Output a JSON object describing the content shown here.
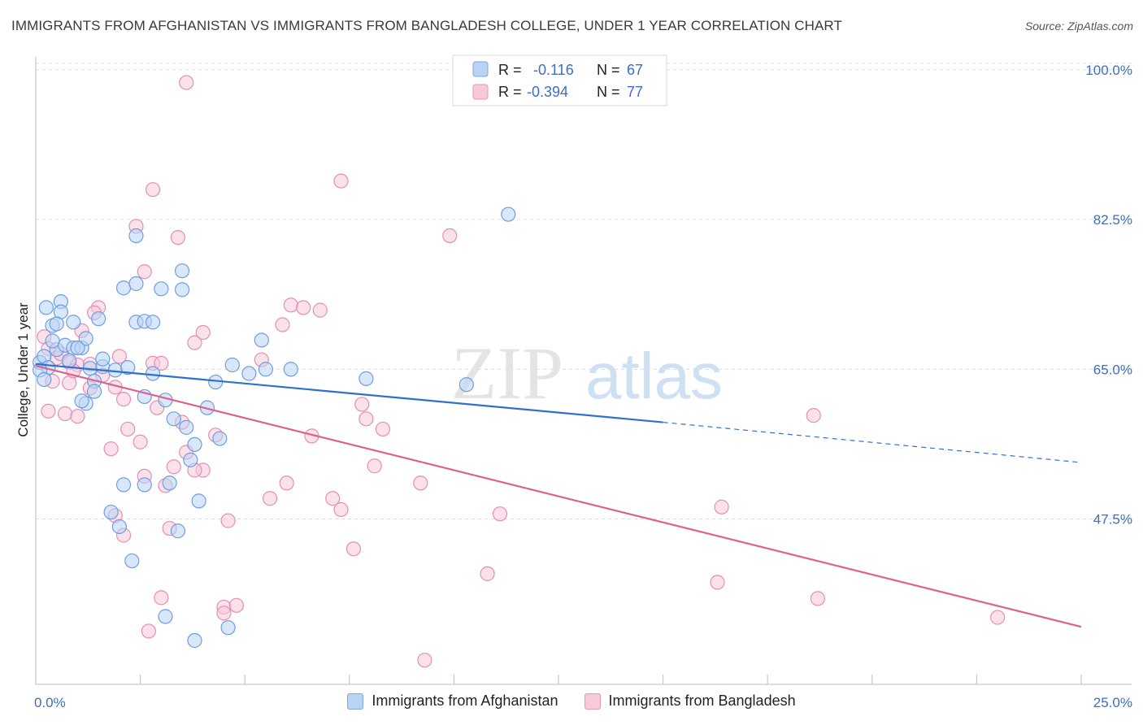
{
  "title": "IMMIGRANTS FROM AFGHANISTAN VS IMMIGRANTS FROM BANGLADESH COLLEGE, UNDER 1 YEAR CORRELATION CHART",
  "source": "Source: ZipAtlas.com",
  "watermark": {
    "zip": "ZIP",
    "atlas": "atlas"
  },
  "colors": {
    "blue_fill": "#b9d3f5",
    "blue_stroke": "#6f9ee0",
    "blue_line": "#2f6fd0",
    "pink_fill": "#f8c9d9",
    "pink_stroke": "#e58fb0",
    "pink_line": "#e0608c",
    "tick_text": "#3b6fc4"
  },
  "legend": {
    "rows": [
      {
        "r_label": "R =",
        "r_value": "-0.116",
        "n_label": "N =",
        "n_value": "67"
      },
      {
        "r_label": "R =",
        "r_value": "-0.394",
        "n_label": "N =",
        "n_value": "77"
      }
    ],
    "placement": "top-center"
  },
  "bottom_legend": [
    "Immigrants from Afghanistan",
    "Immigrants from Bangladesh"
  ],
  "chart_data": {
    "type": "scatter",
    "xlabel": "",
    "ylabel": "College, Under 1 year",
    "xlim": [
      0,
      25
    ],
    "ylim": [
      29.5,
      101.5
    ],
    "x_tick_labels": [
      {
        "value": 0,
        "label": "0.0%"
      },
      {
        "value": 25,
        "label": "25.0%"
      }
    ],
    "y_ticks": [
      {
        "value": 100,
        "label": "100.0%"
      },
      {
        "value": 82.5,
        "label": "82.5%"
      },
      {
        "value": 65,
        "label": "65.0%"
      },
      {
        "value": 47.5,
        "label": "47.5%"
      }
    ],
    "x_minor_ticks": [
      2.5,
      5,
      7.5,
      10,
      12.5,
      15,
      17.5,
      20,
      22.5,
      25
    ],
    "grid": "horizontal-dashed",
    "series": [
      {
        "name": "Immigrants from Afghanistan",
        "color": "#6f9ee0",
        "trend": {
          "x0": 0,
          "y0": 65.6,
          "x1": 15,
          "y1": 58.8,
          "dash_to_x": 25,
          "dash_to_y": 54.1
        },
        "points": [
          [
            0.1,
            65.8
          ],
          [
            0.2,
            66.5
          ],
          [
            0.3,
            65.2
          ],
          [
            0.25,
            72.2
          ],
          [
            0.4,
            70.1
          ],
          [
            0.5,
            67.3
          ],
          [
            0.6,
            72.9
          ],
          [
            0.7,
            67.8
          ],
          [
            0.9,
            67.5
          ],
          [
            0.8,
            66.0
          ],
          [
            1.1,
            67.5
          ],
          [
            1.2,
            68.6
          ],
          [
            1.3,
            65.1
          ],
          [
            1.4,
            63.6
          ],
          [
            1.5,
            70.9
          ],
          [
            1.6,
            65.3
          ],
          [
            1.2,
            61.0
          ],
          [
            1.4,
            62.4
          ],
          [
            1.6,
            66.2
          ],
          [
            2.1,
            74.5
          ],
          [
            2.4,
            75.0
          ],
          [
            2.4,
            70.5
          ],
          [
            2.6,
            70.6
          ],
          [
            2.8,
            70.5
          ],
          [
            3.0,
            74.4
          ],
          [
            3.5,
            74.3
          ],
          [
            0.9,
            70.5
          ],
          [
            0.6,
            71.7
          ],
          [
            0.4,
            68.3
          ],
          [
            1.1,
            61.3
          ],
          [
            1.9,
            64.9
          ],
          [
            2.2,
            65.2
          ],
          [
            2.6,
            61.8
          ],
          [
            2.8,
            64.5
          ],
          [
            3.1,
            61.4
          ],
          [
            3.3,
            59.2
          ],
          [
            3.6,
            58.2
          ],
          [
            3.8,
            56.2
          ],
          [
            3.7,
            54.4
          ],
          [
            3.2,
            51.7
          ],
          [
            2.6,
            51.5
          ],
          [
            4.3,
            63.5
          ],
          [
            4.1,
            60.5
          ],
          [
            4.4,
            56.9
          ],
          [
            4.7,
            65.5
          ],
          [
            5.1,
            64.5
          ],
          [
            5.5,
            65.0
          ],
          [
            3.5,
            76.5
          ],
          [
            6.1,
            65.0
          ],
          [
            7.9,
            63.9
          ],
          [
            10.3,
            63.2
          ],
          [
            11.3,
            83.1
          ],
          [
            2.4,
            80.6
          ],
          [
            1.8,
            48.3
          ],
          [
            2.1,
            51.5
          ],
          [
            3.9,
            49.6
          ],
          [
            2.0,
            46.6
          ],
          [
            2.3,
            42.6
          ],
          [
            3.1,
            36.1
          ],
          [
            3.8,
            33.3
          ],
          [
            4.6,
            34.8
          ],
          [
            3.4,
            46.1
          ],
          [
            5.4,
            68.4
          ],
          [
            0.1,
            64.9
          ],
          [
            0.2,
            63.8
          ],
          [
            1.0,
            67.5
          ],
          [
            0.5,
            70.3
          ]
        ]
      },
      {
        "name": "Immigrants from Bangladesh",
        "color": "#e58fb0",
        "trend": {
          "x0": 0,
          "y0": 65.4,
          "x1": 25,
          "y1": 34.9
        },
        "points": [
          [
            3.6,
            98.5
          ],
          [
            7.3,
            87.0
          ],
          [
            2.8,
            86.0
          ],
          [
            3.4,
            80.4
          ],
          [
            2.4,
            81.7
          ],
          [
            9.9,
            80.6
          ],
          [
            2.6,
            76.4
          ],
          [
            1.5,
            72.2
          ],
          [
            1.4,
            71.6
          ],
          [
            1.1,
            69.5
          ],
          [
            0.2,
            68.8
          ],
          [
            0.3,
            67.4
          ],
          [
            0.5,
            66.3
          ],
          [
            0.6,
            66.8
          ],
          [
            0.8,
            65.8
          ],
          [
            1.0,
            65.5
          ],
          [
            1.3,
            65.6
          ],
          [
            1.6,
            64.3
          ],
          [
            1.9,
            62.9
          ],
          [
            0.4,
            63.6
          ],
          [
            0.8,
            63.4
          ],
          [
            0.7,
            59.8
          ],
          [
            1.0,
            59.5
          ],
          [
            2.1,
            61.5
          ],
          [
            2.2,
            58.0
          ],
          [
            2.5,
            56.5
          ],
          [
            1.8,
            55.7
          ],
          [
            2.8,
            65.7
          ],
          [
            3.0,
            65.7
          ],
          [
            3.8,
            68.1
          ],
          [
            4.0,
            69.3
          ],
          [
            5.4,
            66.1
          ],
          [
            5.9,
            70.2
          ],
          [
            6.1,
            72.5
          ],
          [
            6.4,
            72.2
          ],
          [
            6.8,
            71.9
          ],
          [
            7.8,
            60.9
          ],
          [
            7.9,
            59.2
          ],
          [
            8.1,
            53.7
          ],
          [
            8.3,
            58.0
          ],
          [
            6.6,
            57.2
          ],
          [
            7.1,
            49.9
          ],
          [
            7.3,
            48.6
          ],
          [
            5.6,
            49.9
          ],
          [
            6.0,
            51.7
          ],
          [
            4.0,
            53.2
          ],
          [
            4.3,
            57.3
          ],
          [
            3.8,
            53.2
          ],
          [
            3.3,
            53.6
          ],
          [
            3.1,
            51.4
          ],
          [
            3.5,
            58.8
          ],
          [
            3.6,
            55.3
          ],
          [
            2.6,
            52.5
          ],
          [
            1.9,
            47.9
          ],
          [
            2.1,
            45.6
          ],
          [
            3.2,
            46.4
          ],
          [
            4.6,
            47.3
          ],
          [
            4.5,
            37.2
          ],
          [
            3.0,
            38.3
          ],
          [
            2.7,
            34.4
          ],
          [
            4.5,
            36.5
          ],
          [
            7.6,
            44.0
          ],
          [
            9.2,
            51.7
          ],
          [
            11.1,
            48.1
          ],
          [
            10.8,
            41.1
          ],
          [
            16.3,
            40.1
          ],
          [
            16.4,
            48.9
          ],
          [
            18.7,
            38.2
          ],
          [
            18.6,
            59.6
          ],
          [
            23.0,
            36.0
          ],
          [
            9.3,
            31.0
          ],
          [
            0.3,
            60.1
          ],
          [
            1.3,
            62.8
          ],
          [
            2.0,
            66.5
          ],
          [
            0.9,
            64.8
          ],
          [
            4.8,
            37.4
          ],
          [
            2.9,
            60.5
          ]
        ]
      }
    ]
  }
}
